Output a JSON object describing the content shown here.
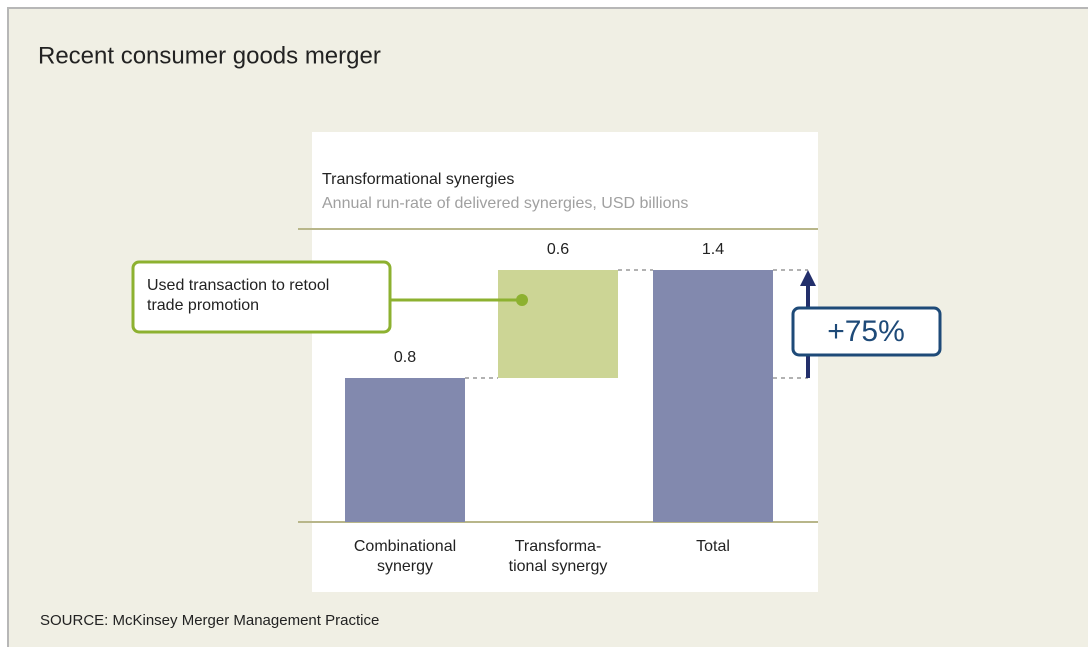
{
  "title": "Recent consumer goods merger",
  "chart_data": {
    "type": "waterfall",
    "title": "Transformational synergies",
    "subtitle": "Annual run-rate of delivered synergies, USD billions",
    "categories": [
      "Combinational\nsynergy",
      "Transforma-\ntional synergy",
      "Total"
    ],
    "values": [
      0.8,
      0.6,
      1.4
    ],
    "colors": [
      "#8289ae",
      "#ccd595",
      "#8289ae"
    ],
    "annotations": [
      "Used transaction to retool\ntrade promotion",
      "+75%"
    ]
  },
  "source": "SOURCE: McKinsey Merger Management Practice"
}
